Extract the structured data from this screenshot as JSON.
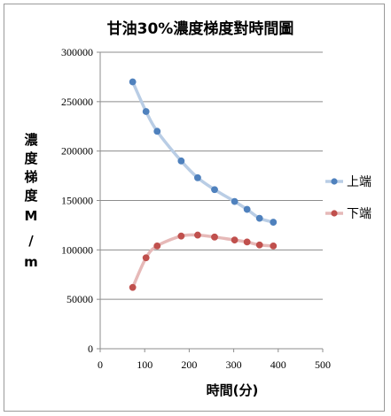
{
  "chart_data": {
    "type": "scatter",
    "title": "甘油30%濃度梯度對時間圖",
    "xlabel": "時間(分)",
    "ylabel_lines": [
      "濃",
      "度",
      "梯",
      "度",
      "M",
      "/",
      "m"
    ],
    "xlim": [
      0,
      500
    ],
    "ylim": [
      0,
      300000
    ],
    "x_ticks": [
      0,
      100,
      200,
      300,
      400,
      500
    ],
    "y_ticks": [
      0,
      50000,
      100000,
      150000,
      200000,
      250000,
      300000
    ],
    "grid": "horizontal",
    "legend_position": "right",
    "series": [
      {
        "name": "上端",
        "color": "#4f81bd",
        "line_color": "#b9cde5",
        "x": [
          73,
          103,
          128,
          182,
          219,
          257,
          302,
          330,
          358,
          389
        ],
        "y": [
          270000,
          240000,
          220000,
          190000,
          173000,
          161000,
          149000,
          141000,
          132000,
          128000
        ]
      },
      {
        "name": "下端",
        "color": "#c0504d",
        "line_color": "#e6b9b8",
        "x": [
          73,
          103,
          128,
          182,
          219,
          257,
          302,
          330,
          358,
          389
        ],
        "y": [
          62000,
          92000,
          104000,
          114000,
          115000,
          113000,
          110000,
          108000,
          105000,
          104000
        ]
      }
    ]
  }
}
